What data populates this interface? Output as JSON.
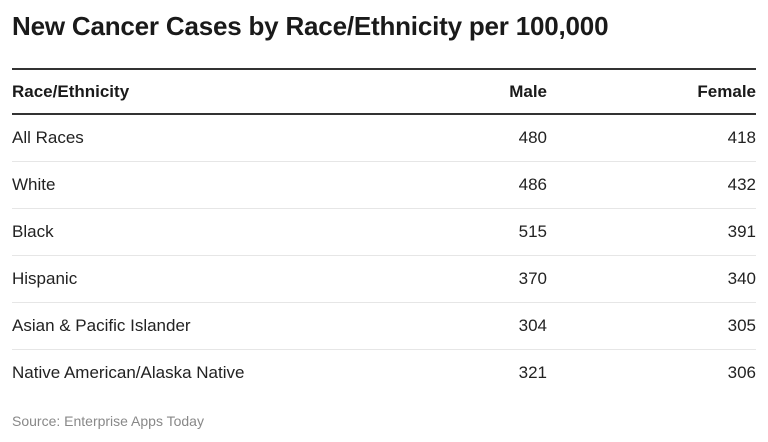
{
  "title": "New Cancer Cases by Race/Ethnicity per 100,000",
  "source": "Source: Enterprise Apps Today",
  "chart_data": {
    "type": "table",
    "title": "New Cancer Cases by Race/Ethnicity per 100,000",
    "columns": [
      "Race/Ethnicity",
      "Male",
      "Female"
    ],
    "rows": [
      {
        "name": "All Races",
        "male": "480",
        "female": "418"
      },
      {
        "name": "White",
        "male": "486",
        "female": "432"
      },
      {
        "name": "Black",
        "male": "515",
        "female": "391"
      },
      {
        "name": "Hispanic",
        "male": "370",
        "female": "340"
      },
      {
        "name": "Asian & Pacific Islander",
        "male": "304",
        "female": "305"
      },
      {
        "name": "Native American/Alaska Native",
        "male": "321",
        "female": "306"
      }
    ]
  },
  "colors": {
    "text": "#222222",
    "rule": "#333333",
    "divider": "#e6e6e6",
    "source": "#888888"
  }
}
